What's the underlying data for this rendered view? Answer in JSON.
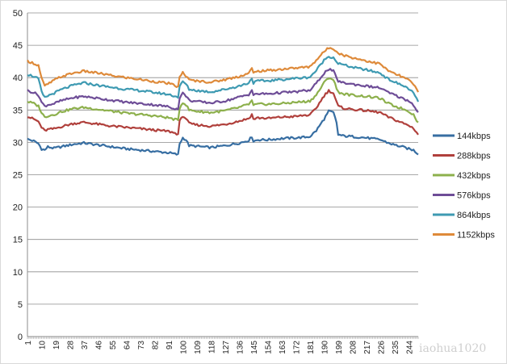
{
  "chart_data": {
    "type": "line",
    "title": "",
    "xlabel": "",
    "ylabel": "",
    "ylim": [
      0,
      50
    ],
    "yticks": [
      "0",
      "5",
      "10",
      "15",
      "20",
      "25",
      "30",
      "35",
      "40",
      "45",
      "50"
    ],
    "xlim": [
      1,
      250
    ],
    "xticks": [
      "1",
      "10",
      "19",
      "28",
      "37",
      "46",
      "55",
      "64",
      "73",
      "82",
      "91",
      "100",
      "109",
      "118",
      "127",
      "136",
      "145",
      "154",
      "163",
      "172",
      "181",
      "190",
      "199",
      "208",
      "217",
      "226",
      "235",
      "244"
    ],
    "grid": "horizontal",
    "legend": "right",
    "watermark": "iaohua1020",
    "series": [
      {
        "name": "144kbps",
        "color": "#376ea2",
        "points": [
          [
            1,
            30.5
          ],
          [
            5,
            30.2
          ],
          [
            8,
            29.8
          ],
          [
            10,
            29.0
          ],
          [
            12,
            28.8
          ],
          [
            14,
            29.3
          ],
          [
            18,
            29.1
          ],
          [
            22,
            29.3
          ],
          [
            30,
            29.7
          ],
          [
            37,
            29.9
          ],
          [
            46,
            29.6
          ],
          [
            55,
            29.3
          ],
          [
            64,
            29.0
          ],
          [
            73,
            28.8
          ],
          [
            82,
            28.6
          ],
          [
            91,
            28.4
          ],
          [
            97,
            28.1
          ],
          [
            98,
            29.8
          ],
          [
            100,
            30.7
          ],
          [
            102,
            30.4
          ],
          [
            104,
            29.5
          ],
          [
            109,
            29.4
          ],
          [
            118,
            29.2
          ],
          [
            127,
            29.5
          ],
          [
            136,
            29.9
          ],
          [
            142,
            30.3
          ],
          [
            144,
            30.9
          ],
          [
            145,
            30.2
          ],
          [
            148,
            30.4
          ],
          [
            154,
            30.4
          ],
          [
            163,
            30.6
          ],
          [
            172,
            30.7
          ],
          [
            178,
            30.8
          ],
          [
            181,
            30.9
          ],
          [
            185,
            31.8
          ],
          [
            190,
            33.6
          ],
          [
            193,
            34.8
          ],
          [
            196,
            34.6
          ],
          [
            198,
            33.0
          ],
          [
            199,
            31.2
          ],
          [
            202,
            31.0
          ],
          [
            208,
            30.9
          ],
          [
            217,
            30.7
          ],
          [
            226,
            30.4
          ],
          [
            230,
            30.0
          ],
          [
            235,
            29.6
          ],
          [
            240,
            29.3
          ],
          [
            244,
            29.0
          ],
          [
            247,
            28.8
          ],
          [
            250,
            28.2
          ]
        ]
      },
      {
        "name": "288kbps",
        "color": "#b0403c",
        "points": [
          [
            1,
            34.0
          ],
          [
            5,
            33.6
          ],
          [
            8,
            33.2
          ],
          [
            10,
            32.3
          ],
          [
            12,
            31.8
          ],
          [
            14,
            32.0
          ],
          [
            18,
            32.1
          ],
          [
            22,
            32.4
          ],
          [
            30,
            32.9
          ],
          [
            37,
            33.1
          ],
          [
            46,
            32.8
          ],
          [
            55,
            32.5
          ],
          [
            64,
            32.3
          ],
          [
            73,
            32.1
          ],
          [
            82,
            31.9
          ],
          [
            91,
            31.7
          ],
          [
            97,
            31.3
          ],
          [
            98,
            33.2
          ],
          [
            100,
            34.1
          ],
          [
            102,
            33.7
          ],
          [
            104,
            32.9
          ],
          [
            109,
            32.7
          ],
          [
            118,
            32.5
          ],
          [
            127,
            32.8
          ],
          [
            136,
            33.3
          ],
          [
            142,
            33.7
          ],
          [
            144,
            34.3
          ],
          [
            145,
            33.6
          ],
          [
            148,
            33.8
          ],
          [
            154,
            33.7
          ],
          [
            163,
            33.9
          ],
          [
            172,
            34.0
          ],
          [
            178,
            34.2
          ],
          [
            181,
            34.2
          ],
          [
            185,
            35.3
          ],
          [
            190,
            37.2
          ],
          [
            193,
            38.0
          ],
          [
            196,
            37.6
          ],
          [
            198,
            36.2
          ],
          [
            199,
            35.6
          ],
          [
            202,
            35.3
          ],
          [
            208,
            35.1
          ],
          [
            217,
            34.9
          ],
          [
            226,
            34.6
          ],
          [
            230,
            34.0
          ],
          [
            235,
            33.5
          ],
          [
            240,
            33.0
          ],
          [
            244,
            32.6
          ],
          [
            247,
            32.2
          ],
          [
            250,
            31.2
          ]
        ]
      },
      {
        "name": "432kbps",
        "color": "#8db04c",
        "points": [
          [
            1,
            36.3
          ],
          [
            5,
            36.0
          ],
          [
            8,
            35.6
          ],
          [
            10,
            34.6
          ],
          [
            12,
            33.9
          ],
          [
            14,
            34.1
          ],
          [
            18,
            34.3
          ],
          [
            22,
            34.7
          ],
          [
            30,
            35.2
          ],
          [
            37,
            35.4
          ],
          [
            46,
            35.1
          ],
          [
            55,
            34.8
          ],
          [
            64,
            34.5
          ],
          [
            73,
            34.3
          ],
          [
            82,
            34.1
          ],
          [
            91,
            33.8
          ],
          [
            97,
            33.4
          ],
          [
            98,
            35.3
          ],
          [
            100,
            36.2
          ],
          [
            102,
            35.8
          ],
          [
            104,
            35.0
          ],
          [
            109,
            34.8
          ],
          [
            118,
            34.6
          ],
          [
            127,
            34.9
          ],
          [
            136,
            35.4
          ],
          [
            142,
            35.9
          ],
          [
            144,
            36.4
          ],
          [
            145,
            35.7
          ],
          [
            148,
            35.9
          ],
          [
            154,
            35.9
          ],
          [
            163,
            36.0
          ],
          [
            172,
            36.2
          ],
          [
            178,
            36.3
          ],
          [
            181,
            36.4
          ],
          [
            185,
            37.3
          ],
          [
            190,
            39.2
          ],
          [
            193,
            40.0
          ],
          [
            196,
            39.7
          ],
          [
            198,
            38.3
          ],
          [
            199,
            37.8
          ],
          [
            202,
            37.5
          ],
          [
            208,
            37.3
          ],
          [
            217,
            37.1
          ],
          [
            226,
            36.8
          ],
          [
            230,
            36.1
          ],
          [
            235,
            35.6
          ],
          [
            240,
            35.2
          ],
          [
            244,
            34.8
          ],
          [
            247,
            34.3
          ],
          [
            250,
            33.0
          ]
        ]
      },
      {
        "name": "576kbps",
        "color": "#6e4d97",
        "points": [
          [
            1,
            38.0
          ],
          [
            5,
            37.7
          ],
          [
            8,
            37.3
          ],
          [
            10,
            36.2
          ],
          [
            12,
            35.6
          ],
          [
            14,
            35.8
          ],
          [
            18,
            36.0
          ],
          [
            22,
            36.4
          ],
          [
            30,
            36.9
          ],
          [
            37,
            37.1
          ],
          [
            46,
            36.8
          ],
          [
            55,
            36.5
          ],
          [
            64,
            36.2
          ],
          [
            73,
            36.0
          ],
          [
            82,
            35.8
          ],
          [
            91,
            35.5
          ],
          [
            97,
            35.1
          ],
          [
            98,
            36.9
          ],
          [
            100,
            37.6
          ],
          [
            102,
            37.2
          ],
          [
            104,
            36.5
          ],
          [
            109,
            36.3
          ],
          [
            118,
            36.1
          ],
          [
            127,
            36.4
          ],
          [
            136,
            37.0
          ],
          [
            142,
            37.4
          ],
          [
            144,
            38.1
          ],
          [
            145,
            37.3
          ],
          [
            148,
            37.5
          ],
          [
            154,
            37.5
          ],
          [
            163,
            37.7
          ],
          [
            172,
            37.8
          ],
          [
            178,
            38.0
          ],
          [
            181,
            38.0
          ],
          [
            185,
            39.1
          ],
          [
            190,
            40.7
          ],
          [
            193,
            41.3
          ],
          [
            196,
            41.0
          ],
          [
            198,
            39.9
          ],
          [
            199,
            39.5
          ],
          [
            202,
            39.2
          ],
          [
            208,
            39.0
          ],
          [
            217,
            38.7
          ],
          [
            226,
            38.4
          ],
          [
            230,
            37.8
          ],
          [
            235,
            37.3
          ],
          [
            240,
            36.8
          ],
          [
            244,
            36.4
          ],
          [
            247,
            35.8
          ],
          [
            250,
            34.6
          ]
        ]
      },
      {
        "name": "864kbps",
        "color": "#3e9ab2",
        "points": [
          [
            1,
            40.5
          ],
          [
            5,
            40.2
          ],
          [
            8,
            39.8
          ],
          [
            10,
            37.8
          ],
          [
            12,
            36.9
          ],
          [
            14,
            37.2
          ],
          [
            18,
            37.6
          ],
          [
            22,
            38.1
          ],
          [
            30,
            38.8
          ],
          [
            37,
            39.2
          ],
          [
            46,
            38.8
          ],
          [
            55,
            38.5
          ],
          [
            64,
            38.2
          ],
          [
            73,
            38.0
          ],
          [
            82,
            37.7
          ],
          [
            91,
            37.4
          ],
          [
            97,
            37.0
          ],
          [
            98,
            38.6
          ],
          [
            100,
            39.4
          ],
          [
            102,
            39.0
          ],
          [
            104,
            38.2
          ],
          [
            109,
            38.0
          ],
          [
            118,
            37.8
          ],
          [
            127,
            38.2
          ],
          [
            136,
            38.7
          ],
          [
            142,
            39.2
          ],
          [
            144,
            39.9
          ],
          [
            145,
            39.2
          ],
          [
            148,
            39.5
          ],
          [
            154,
            39.5
          ],
          [
            163,
            39.7
          ],
          [
            172,
            39.9
          ],
          [
            178,
            40.0
          ],
          [
            181,
            40.1
          ],
          [
            185,
            41.1
          ],
          [
            190,
            42.7
          ],
          [
            193,
            43.3
          ],
          [
            196,
            43.1
          ],
          [
            198,
            42.5
          ],
          [
            199,
            42.2
          ],
          [
            202,
            42.0
          ],
          [
            208,
            41.6
          ],
          [
            217,
            41.2
          ],
          [
            226,
            40.7
          ],
          [
            230,
            39.9
          ],
          [
            235,
            39.3
          ],
          [
            240,
            38.8
          ],
          [
            244,
            38.3
          ],
          [
            247,
            37.6
          ],
          [
            250,
            36.2
          ]
        ]
      },
      {
        "name": "1152kbps",
        "color": "#de8a3a",
        "points": [
          [
            1,
            42.6
          ],
          [
            5,
            42.2
          ],
          [
            8,
            41.9
          ],
          [
            10,
            39.9
          ],
          [
            12,
            38.7
          ],
          [
            14,
            39.0
          ],
          [
            18,
            39.6
          ],
          [
            22,
            40.1
          ],
          [
            30,
            40.7
          ],
          [
            37,
            41.0
          ],
          [
            46,
            40.7
          ],
          [
            55,
            40.3
          ],
          [
            64,
            40.0
          ],
          [
            73,
            39.7
          ],
          [
            82,
            39.4
          ],
          [
            91,
            39.1
          ],
          [
            97,
            38.6
          ],
          [
            98,
            40.0
          ],
          [
            100,
            40.8
          ],
          [
            102,
            40.3
          ],
          [
            104,
            39.6
          ],
          [
            109,
            39.5
          ],
          [
            118,
            39.3
          ],
          [
            127,
            39.7
          ],
          [
            136,
            40.2
          ],
          [
            142,
            40.7
          ],
          [
            144,
            41.4
          ],
          [
            145,
            40.7
          ],
          [
            148,
            41.0
          ],
          [
            154,
            41.1
          ],
          [
            163,
            41.3
          ],
          [
            172,
            41.5
          ],
          [
            178,
            41.6
          ],
          [
            181,
            41.7
          ],
          [
            185,
            42.7
          ],
          [
            190,
            44.0
          ],
          [
            193,
            44.6
          ],
          [
            196,
            44.5
          ],
          [
            198,
            44.1
          ],
          [
            199,
            43.8
          ],
          [
            202,
            43.5
          ],
          [
            208,
            43.1
          ],
          [
            217,
            42.6
          ],
          [
            226,
            42.1
          ],
          [
            230,
            41.2
          ],
          [
            235,
            40.6
          ],
          [
            240,
            40.1
          ],
          [
            244,
            39.6
          ],
          [
            247,
            39.0
          ],
          [
            250,
            37.7
          ]
        ]
      }
    ]
  }
}
